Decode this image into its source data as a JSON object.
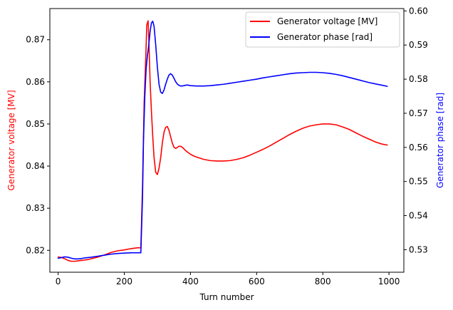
{
  "chart_data": {
    "type": "line",
    "xlabel": "Turn number",
    "ylabel_left": "Generator voltage [MV]",
    "ylabel_right": "Generator phase [rad]",
    "xlim": [
      -25,
      1045
    ],
    "ylim_left": [
      0.8148,
      0.8774
    ],
    "ylim_right": [
      0.5234,
      0.6007
    ],
    "x_ticks": [
      0,
      200,
      400,
      600,
      800,
      1000
    ],
    "y_ticks_left": [
      0.82,
      0.83,
      0.84,
      0.85,
      0.86,
      0.87
    ],
    "y_ticks_right": [
      0.53,
      0.54,
      0.55,
      0.56,
      0.57,
      0.58,
      0.59,
      0.6
    ],
    "y_tick_labels_left": [
      "0.82",
      "0.83",
      "0.84",
      "0.85",
      "0.86",
      "0.87"
    ],
    "y_tick_labels_right": [
      "0.53",
      "0.54",
      "0.55",
      "0.56",
      "0.57",
      "0.58",
      "0.59",
      "0.60"
    ],
    "x_tick_labels": [
      "0",
      "200",
      "400",
      "600",
      "800",
      "1000"
    ],
    "grid": false,
    "legend_position": "top-right",
    "series": [
      {
        "name": "Generator voltage [MV]",
        "axis": "left",
        "color": "#ff0000",
        "x": [
          0,
          10,
          20,
          30,
          40,
          50,
          60,
          70,
          80,
          90,
          100,
          120,
          140,
          160,
          180,
          200,
          220,
          240,
          250,
          255,
          260,
          265,
          268,
          272,
          275,
          278,
          282,
          286,
          290,
          295,
          300,
          305,
          310,
          315,
          320,
          325,
          330,
          335,
          340,
          345,
          350,
          355,
          360,
          365,
          370,
          375,
          380,
          385,
          390,
          395,
          400,
          410,
          420,
          440,
          460,
          480,
          500,
          520,
          540,
          560,
          580,
          600,
          620,
          640,
          660,
          680,
          700,
          720,
          740,
          760,
          780,
          800,
          820,
          840,
          860,
          880,
          900,
          920,
          940,
          960,
          980,
          995
        ],
        "y": [
          0.8184,
          0.8183,
          0.818,
          0.8176,
          0.8174,
          0.8174,
          0.8175,
          0.8176,
          0.8177,
          0.8178,
          0.818,
          0.8184,
          0.8189,
          0.8195,
          0.8199,
          0.8201,
          0.8204,
          0.8206,
          0.8206,
          0.835,
          0.855,
          0.866,
          0.8735,
          0.8745,
          0.868,
          0.86,
          0.853,
          0.847,
          0.842,
          0.8385,
          0.838,
          0.8395,
          0.842,
          0.8455,
          0.848,
          0.8492,
          0.8494,
          0.8485,
          0.847,
          0.8455,
          0.8445,
          0.8442,
          0.8444,
          0.8447,
          0.8447,
          0.8445,
          0.8441,
          0.8437,
          0.8434,
          0.8431,
          0.8428,
          0.8424,
          0.8421,
          0.8416,
          0.8413,
          0.8412,
          0.8412,
          0.8413,
          0.8416,
          0.842,
          0.8426,
          0.8433,
          0.844,
          0.8448,
          0.8457,
          0.8466,
          0.8475,
          0.8483,
          0.849,
          0.8495,
          0.8498,
          0.85,
          0.85,
          0.8498,
          0.8493,
          0.8487,
          0.8479,
          0.8471,
          0.8464,
          0.8457,
          0.8452,
          0.845
        ]
      },
      {
        "name": "Generator phase [rad]",
        "axis": "right",
        "color": "#0000ff",
        "x": [
          0,
          10,
          20,
          30,
          40,
          50,
          60,
          70,
          80,
          90,
          100,
          120,
          140,
          160,
          180,
          200,
          220,
          240,
          250,
          255,
          258,
          262,
          266,
          270,
          274,
          278,
          282,
          286,
          290,
          295,
          300,
          305,
          310,
          315,
          320,
          325,
          330,
          335,
          340,
          345,
          350,
          355,
          360,
          365,
          370,
          375,
          380,
          385,
          390,
          395,
          400,
          420,
          440,
          460,
          480,
          500,
          520,
          540,
          560,
          580,
          600,
          620,
          640,
          660,
          680,
          700,
          720,
          740,
          760,
          780,
          800,
          820,
          840,
          860,
          880,
          900,
          920,
          940,
          960,
          980,
          995
        ],
        "y": [
          0.5275,
          0.5277,
          0.5279,
          0.5278,
          0.5275,
          0.5273,
          0.5273,
          0.5274,
          0.5276,
          0.5277,
          0.5278,
          0.5281,
          0.5284,
          0.5287,
          0.5289,
          0.529,
          0.5291,
          0.5291,
          0.5291,
          0.545,
          0.562,
          0.575,
          0.583,
          0.587,
          0.59,
          0.594,
          0.5965,
          0.597,
          0.5955,
          0.59,
          0.5835,
          0.5785,
          0.5762,
          0.5758,
          0.5768,
          0.5785,
          0.58,
          0.5812,
          0.5816,
          0.5812,
          0.5803,
          0.5793,
          0.5786,
          0.5782,
          0.578,
          0.578,
          0.5781,
          0.5782,
          0.5783,
          0.5782,
          0.5781,
          0.578,
          0.578,
          0.5781,
          0.5783,
          0.5785,
          0.5788,
          0.5791,
          0.5794,
          0.5797,
          0.58,
          0.5804,
          0.5807,
          0.581,
          0.5813,
          0.5816,
          0.5818,
          0.5819,
          0.582,
          0.582,
          0.5819,
          0.5817,
          0.5814,
          0.581,
          0.5805,
          0.58,
          0.5795,
          0.579,
          0.5786,
          0.5782,
          0.5779
        ]
      }
    ]
  }
}
